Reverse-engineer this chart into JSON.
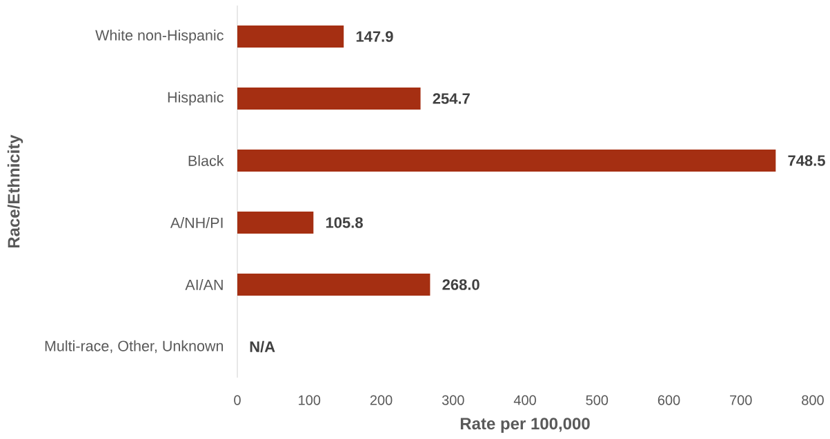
{
  "chart_data": {
    "type": "bar",
    "orientation": "horizontal",
    "categories": [
      "White non-Hispanic",
      "Hispanic",
      "Black",
      "A/NH/PI",
      "AI/AN",
      "Multi-race, Other, Unknown"
    ],
    "values": [
      147.9,
      254.7,
      748.5,
      105.8,
      268.0,
      null
    ],
    "value_labels": [
      "147.9",
      "254.7",
      "748.5",
      "105.8",
      "268.0",
      "N/A"
    ],
    "color": "#a52f12",
    "xlim": [
      0,
      800
    ],
    "xticks": [
      0,
      100,
      200,
      300,
      400,
      500,
      600,
      700,
      800
    ],
    "xlabel": "Rate per 100,000",
    "ylabel": "Race/Ethnicity"
  }
}
